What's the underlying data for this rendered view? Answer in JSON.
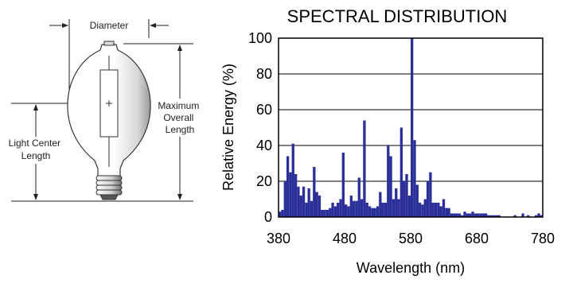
{
  "diagram": {
    "diameter_label": "Diameter",
    "max_length_label": [
      "Maximum",
      "Overall",
      "Length"
    ],
    "light_center_label": [
      "Light Center",
      "Length"
    ]
  },
  "chart_data": {
    "type": "bar",
    "title": "SPECTRAL DISTRIBUTION",
    "xlabel": "Wavelength (nm)",
    "ylabel": "Relative Energy (%)",
    "xlim": [
      380,
      780
    ],
    "ylim": [
      0,
      100
    ],
    "xticks": [
      380,
      480,
      580,
      680,
      780
    ],
    "yticks": [
      0,
      20,
      40,
      60,
      80,
      100
    ],
    "grid": "horizontal",
    "bar_color": "#2b2f9a",
    "x": [
      380,
      384,
      388,
      392,
      396,
      400,
      404,
      408,
      412,
      416,
      420,
      424,
      428,
      432,
      436,
      440,
      444,
      448,
      452,
      456,
      460,
      464,
      468,
      472,
      476,
      480,
      484,
      488,
      492,
      496,
      500,
      504,
      508,
      512,
      516,
      520,
      524,
      528,
      532,
      536,
      540,
      544,
      548,
      552,
      556,
      560,
      564,
      568,
      572,
      576,
      580,
      584,
      588,
      592,
      596,
      600,
      604,
      608,
      612,
      616,
      620,
      624,
      628,
      632,
      636,
      640,
      644,
      648,
      652,
      656,
      660,
      664,
      668,
      672,
      676,
      680,
      684,
      688,
      692,
      696,
      700,
      704,
      708,
      712,
      716,
      720,
      724,
      728,
      732,
      736,
      740,
      744,
      748,
      752,
      756,
      760,
      764,
      768,
      772,
      776
    ],
    "values": [
      3,
      4,
      20,
      34,
      25,
      41,
      24,
      17,
      12,
      17,
      8,
      16,
      9,
      28,
      14,
      12,
      4,
      4,
      4,
      5,
      8,
      6,
      8,
      10,
      36,
      7,
      6,
      12,
      9,
      9,
      22,
      10,
      54,
      8,
      6,
      5,
      5,
      6,
      14,
      8,
      8,
      40,
      34,
      10,
      16,
      10,
      50,
      20,
      24,
      12,
      100,
      43,
      18,
      8,
      7,
      10,
      20,
      25,
      8,
      8,
      8,
      6,
      10,
      5,
      5,
      2,
      2,
      2,
      2,
      1,
      3,
      2,
      2,
      3,
      2,
      2,
      2,
      2,
      2,
      1,
      1,
      1,
      1,
      1,
      0,
      0,
      0,
      0,
      0,
      1,
      0,
      0,
      2,
      0,
      1,
      0,
      0,
      1,
      2,
      1
    ]
  }
}
